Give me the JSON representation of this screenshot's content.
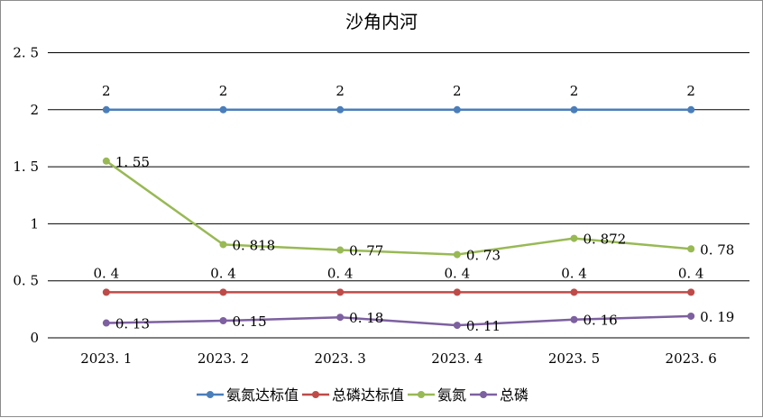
{
  "chart_data": {
    "type": "line",
    "title": "沙角内河",
    "xlabel": "",
    "ylabel": "",
    "categories": [
      "2023.1",
      "2023.2",
      "2023.3",
      "2023.4",
      "2023.5",
      "2023.6"
    ],
    "y_ticks": [
      "0",
      "0.5",
      "1",
      "1.5",
      "2",
      "2.5"
    ],
    "ylim": [
      0,
      2.5
    ],
    "grid": true,
    "legend_position": "bottom",
    "series": [
      {
        "name": "氨氮达标值",
        "values": [
          2,
          2,
          2,
          2,
          2,
          2
        ],
        "labels": [
          "2",
          "2",
          "2",
          "2",
          "2",
          "2"
        ],
        "color": "#4a7ebb"
      },
      {
        "name": "总磷达标值",
        "values": [
          0.4,
          0.4,
          0.4,
          0.4,
          0.4,
          0.4
        ],
        "labels": [
          "0.4",
          "0.4",
          "0.4",
          "0.4",
          "0.4",
          "0.4"
        ],
        "color": "#be4b48"
      },
      {
        "name": "氨氮",
        "values": [
          1.55,
          0.818,
          0.77,
          0.73,
          0.872,
          0.78
        ],
        "labels": [
          "1.55",
          "0.818",
          "0.77",
          "0.73",
          "0.872",
          "0.78"
        ],
        "color": "#98b954"
      },
      {
        "name": "总磷",
        "values": [
          0.13,
          0.15,
          0.18,
          0.11,
          0.16,
          0.19
        ],
        "labels": [
          "0.13",
          "0.15",
          "0.18",
          "0.11",
          "0.16",
          "0.19"
        ],
        "color": "#7d60a0"
      }
    ]
  }
}
